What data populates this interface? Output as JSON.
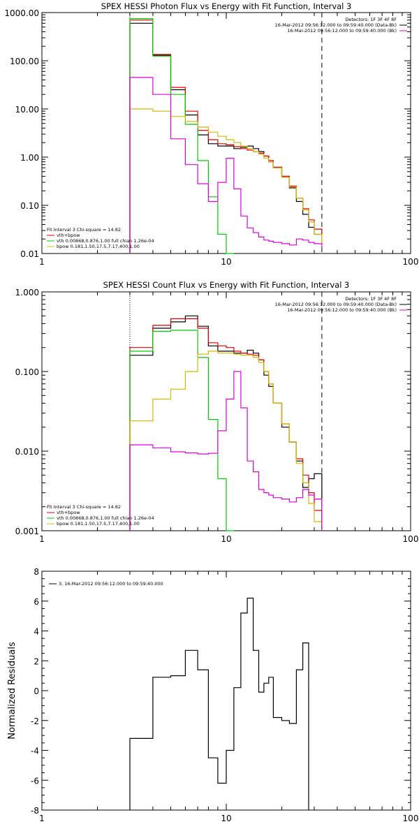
{
  "chart_data": [
    {
      "type": "line",
      "scale": "log-log",
      "title": "SPEX HESSI Photon Flux vs Energy with Fit Function, Interval 3",
      "xlim": [
        1,
        100
      ],
      "ylim": [
        0.01,
        1000
      ],
      "x_ticks": [
        {
          "v": 1,
          "label": "1"
        },
        {
          "v": 10,
          "label": "10"
        },
        {
          "v": 100,
          "label": "100"
        }
      ],
      "y_ticks": [
        {
          "v": 1000,
          "label": "1000.00"
        },
        {
          "v": 100,
          "label": "100.00"
        },
        {
          "v": 10,
          "label": "10.00"
        },
        {
          "v": 1,
          "label": "1.00"
        },
        {
          "v": 0.1,
          "label": "0.10"
        },
        {
          "v": 0.01,
          "label": "0.01"
        }
      ],
      "xlabel": "",
      "ylabel": "",
      "edges": [
        3,
        4,
        5,
        6,
        7,
        8,
        9,
        10,
        11,
        12,
        13,
        14,
        15,
        16,
        17,
        18,
        20,
        22,
        24,
        26,
        28,
        30,
        33
      ],
      "series": [
        {
          "key": "total",
          "color": "#000000",
          "values": [
            600,
            130,
            25,
            7.5,
            2.9,
            1.9,
            1.7,
            1.7,
            1.5,
            1.6,
            1.7,
            1.5,
            1.3,
            1.05,
            0.8,
            0.6,
            0.4,
            0.23,
            0.12,
            0.065,
            0.035,
            0.025,
            0.032
          ]
        },
        {
          "key": "model",
          "color": "#e00000",
          "values": [
            700,
            135,
            28,
            9,
            3.6,
            2.3,
            1.9,
            1.8,
            1.65,
            1.5,
            1.4,
            1.3,
            1.2,
            1.05,
            0.85,
            0.62,
            0.4,
            0.25,
            0.14,
            0.085,
            0.05,
            0.032,
            0.02
          ]
        },
        {
          "key": "vth",
          "color": "#00cc00",
          "values": [
            750,
            125,
            20,
            4.8,
            0.85,
            0.15,
            0.025,
            0.009
          ]
        },
        {
          "key": "bpow",
          "color": "#d4b800",
          "values": [
            10,
            9,
            7,
            5.5,
            4.2,
            3.3,
            2.7,
            2.3,
            2.0,
            1.7,
            1.5,
            1.3,
            1.15,
            0.95,
            0.8,
            0.6,
            0.38,
            0.24,
            0.14,
            0.08,
            0.045,
            0.025,
            0.015
          ]
        },
        {
          "key": "bk",
          "color": "#dd00dd",
          "values": [
            45,
            20,
            2.4,
            0.7,
            0.28,
            0.12,
            0.3,
            0.95,
            0.22,
            0.06,
            0.034,
            0.027,
            0.022,
            0.019,
            0.018,
            0.017,
            0.016,
            0.015,
            0.02,
            0.019,
            0.017,
            0.016,
            0.013
          ]
        }
      ],
      "legend_top_right": [
        {
          "text": "Detectors: 1F 3F 4F 8F",
          "color": "#000000"
        },
        {
          "text": "16-Mar-2012 09:56:12.000 to 09:59:40.000 (Data-Bk)",
          "color": "#000000"
        },
        {
          "text": "16-Mar-2012 09:56:12.000 to 09:59:40.000 (Bk)",
          "color": "#dd00dd"
        }
      ],
      "legend_bottom_left": [
        {
          "text": "Fit Interval 3   Chi-square = 14.82",
          "color": "#000000"
        },
        {
          "text": "vth+bpow",
          "color": "#e00000"
        },
        {
          "text": "vth 0.00868,0.876,1.00   full chian 1.26e-04",
          "color": "#00cc00"
        },
        {
          "text": "bpow 0.181,1.50,17.5,7.17,400,1.00",
          "color": "#d4b800"
        }
      ],
      "vlines": [
        {
          "x": 3,
          "style": "dotted"
        },
        {
          "x": 33,
          "style": "dashed"
        }
      ]
    },
    {
      "type": "line",
      "scale": "log-log",
      "title": "SPEX HESSI Count Flux vs Energy with Fit Function, Interval 3",
      "xlim": [
        1,
        100
      ],
      "ylim": [
        0.001,
        1
      ],
      "x_ticks": [
        {
          "v": 1,
          "label": "1"
        },
        {
          "v": 10,
          "label": "10"
        },
        {
          "v": 100,
          "label": "100"
        }
      ],
      "y_ticks": [
        {
          "v": 1,
          "label": "1.000"
        },
        {
          "v": 0.1,
          "label": "0.100"
        },
        {
          "v": 0.01,
          "label": "0.010"
        },
        {
          "v": 0.001,
          "label": "0.001"
        }
      ],
      "xlabel": "",
      "ylabel": "",
      "edges": [
        3,
        4,
        5,
        6,
        7,
        8,
        9,
        10,
        11,
        12,
        13,
        14,
        15,
        16,
        17,
        18,
        20,
        22,
        24,
        26,
        28,
        30,
        33
      ],
      "series": [
        {
          "key": "total",
          "color": "#000000",
          "values": [
            0.16,
            0.35,
            0.42,
            0.5,
            0.37,
            0.21,
            0.18,
            0.18,
            0.17,
            0.17,
            0.185,
            0.17,
            0.14,
            0.09,
            0.065,
            0.04,
            0.02,
            0.013,
            0.0075,
            0.0035,
            0.0045,
            0.0052
          ]
        },
        {
          "key": "model",
          "color": "#e00000",
          "values": [
            0.2,
            0.38,
            0.46,
            0.46,
            0.35,
            0.23,
            0.21,
            0.2,
            0.18,
            0.17,
            0.165,
            0.16,
            0.14,
            0.1,
            0.07,
            0.04,
            0.022,
            0.013,
            0.008,
            0.005,
            0.003,
            0.0018
          ]
        },
        {
          "key": "vth",
          "color": "#00cc00",
          "values": [
            0.18,
            0.32,
            0.33,
            0.33,
            0.15,
            0.025,
            0.0045,
            0.0009
          ]
        },
        {
          "key": "bpow",
          "color": "#d4b800",
          "values": [
            0.024,
            0.045,
            0.06,
            0.1,
            0.165,
            0.18,
            0.17,
            0.17,
            0.165,
            0.16,
            0.16,
            0.15,
            0.13,
            0.1,
            0.07,
            0.04,
            0.022,
            0.013,
            0.007,
            0.004,
            0.0022,
            0.0013
          ]
        },
        {
          "key": "bk",
          "color": "#dd00dd",
          "values": [
            0.012,
            0.011,
            0.0098,
            0.0095,
            0.0092,
            0.0094,
            0.018,
            0.045,
            0.1,
            0.035,
            0.0075,
            0.0055,
            0.0033,
            0.003,
            0.0028,
            0.0026,
            0.0025,
            0.0023,
            0.0026,
            0.0033,
            0.0028,
            0.0025
          ]
        }
      ],
      "legend_top_right": [
        {
          "text": "Detectors: 1F 3F 4F 8F",
          "color": "#000000"
        },
        {
          "text": "16-Mar-2012 09:56:12.000 to 09:59:40.000 (Data-Bk)",
          "color": "#000000"
        },
        {
          "text": "16-Mar-2012 09:56:12.000 to 09:59:40.000 (Bk)",
          "color": "#dd00dd"
        }
      ],
      "legend_bottom_left": [
        {
          "text": "Fit Interval 3   Chi-square = 14.82",
          "color": "#000000"
        },
        {
          "text": "vth+bpow",
          "color": "#e00000"
        },
        {
          "text": "vth 0.00868,0.876,1.00   full chian 1.26e-04",
          "color": "#00cc00"
        },
        {
          "text": "bpow 0.181,1.50,17.5,7.17,400,1.00",
          "color": "#d4b800"
        }
      ],
      "vlines": [
        {
          "x": 3,
          "style": "dotted"
        },
        {
          "x": 33,
          "style": "dashed"
        }
      ]
    },
    {
      "type": "line",
      "scale": "log-x",
      "title": "",
      "xlim": [
        1,
        100
      ],
      "ylim": [
        -8,
        8
      ],
      "x_ticks": [
        {
          "v": 1,
          "label": "1"
        },
        {
          "v": 10,
          "label": "10"
        },
        {
          "v": 100,
          "label": "100"
        }
      ],
      "y_ticks": [
        {
          "v": 8,
          "label": "8"
        },
        {
          "v": 6,
          "label": "6"
        },
        {
          "v": 4,
          "label": "4"
        },
        {
          "v": 2,
          "label": "2"
        },
        {
          "v": 0,
          "label": "0"
        },
        {
          "v": -2,
          "label": "-2"
        },
        {
          "v": -4,
          "label": "-4"
        },
        {
          "v": -6,
          "label": "-6"
        },
        {
          "v": -8,
          "label": "-8"
        }
      ],
      "xlabel": "",
      "ylabel": "Normalized Residuals",
      "edges": [
        3,
        4,
        5,
        6,
        7,
        8,
        9,
        10,
        11,
        12,
        13,
        14,
        15,
        16,
        17,
        18,
        20,
        22,
        24,
        26,
        28,
        30,
        33
      ],
      "series": [
        {
          "key": "residuals",
          "color": "#000000",
          "values": [
            -3.2,
            0.9,
            1.0,
            2.7,
            1.4,
            -4.5,
            -6.2,
            -4.0,
            0.2,
            5.2,
            6.2,
            2.7,
            -0.1,
            0.5,
            0.9,
            -1.8,
            -2.0,
            -2.2,
            1.4,
            3.2
          ]
        }
      ],
      "legend_top_left": [
        {
          "text": "3, 16-Mar-2012 09:56:12.000 to 09:59:40.000",
          "color": "#000000"
        }
      ]
    }
  ]
}
